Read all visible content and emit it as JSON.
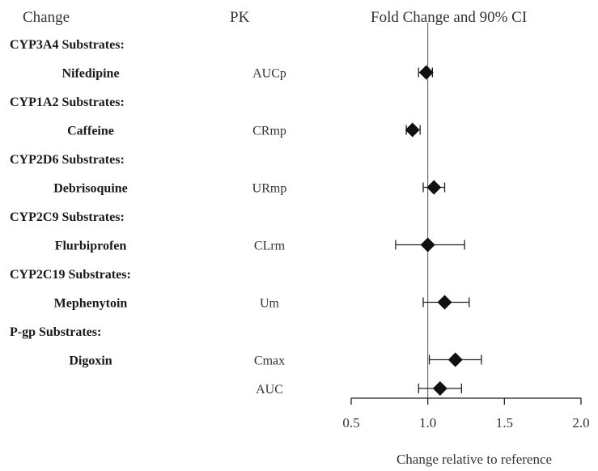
{
  "headers": {
    "change": "Change",
    "pk": "PK",
    "ci": "Fold Change and 90% CI"
  },
  "chart_data": {
    "type": "forest",
    "xlabel": "Change relative to reference",
    "xlim": [
      0.5,
      2.0
    ],
    "xticks": [
      0.5,
      1.0,
      1.5,
      2.0
    ],
    "xtick_labels": [
      "0.5",
      "1.0",
      "1.5",
      "2.0"
    ],
    "reference_line": 1.0,
    "groups": [
      {
        "name": "CYP3A4 Substrates:",
        "drugs": [
          {
            "drug": "Nifedipine",
            "rows": [
              {
                "pk": "AUCp",
                "estimate": 0.99,
                "lower": 0.94,
                "upper": 1.03
              }
            ]
          }
        ]
      },
      {
        "name": "CYP1A2 Substrates:",
        "drugs": [
          {
            "drug": "Caffeine",
            "rows": [
              {
                "pk": "CRmp",
                "estimate": 0.9,
                "lower": 0.86,
                "upper": 0.95
              }
            ]
          }
        ]
      },
      {
        "name": "CYP2D6 Substrates:",
        "drugs": [
          {
            "drug": "Debrisoquine",
            "rows": [
              {
                "pk": "URmp",
                "estimate": 1.04,
                "lower": 0.97,
                "upper": 1.11
              }
            ]
          }
        ]
      },
      {
        "name": "CYP2C9 Substrates:",
        "drugs": [
          {
            "drug": "Flurbiprofen",
            "rows": [
              {
                "pk": "CLrm",
                "estimate": 1.0,
                "lower": 0.79,
                "upper": 1.24
              }
            ]
          }
        ]
      },
      {
        "name": "CYP2C19 Substrates:",
        "drugs": [
          {
            "drug": "Mephenytoin",
            "rows": [
              {
                "pk": "Um",
                "estimate": 1.11,
                "lower": 0.97,
                "upper": 1.27
              }
            ]
          }
        ]
      },
      {
        "name": "P-gp Substrates:",
        "drugs": [
          {
            "drug": "Digoxin",
            "rows": [
              {
                "pk": "Cmax",
                "estimate": 1.18,
                "lower": 1.01,
                "upper": 1.35
              },
              {
                "pk": "AUC",
                "estimate": 1.08,
                "lower": 0.94,
                "upper": 1.22
              }
            ]
          }
        ]
      }
    ]
  }
}
